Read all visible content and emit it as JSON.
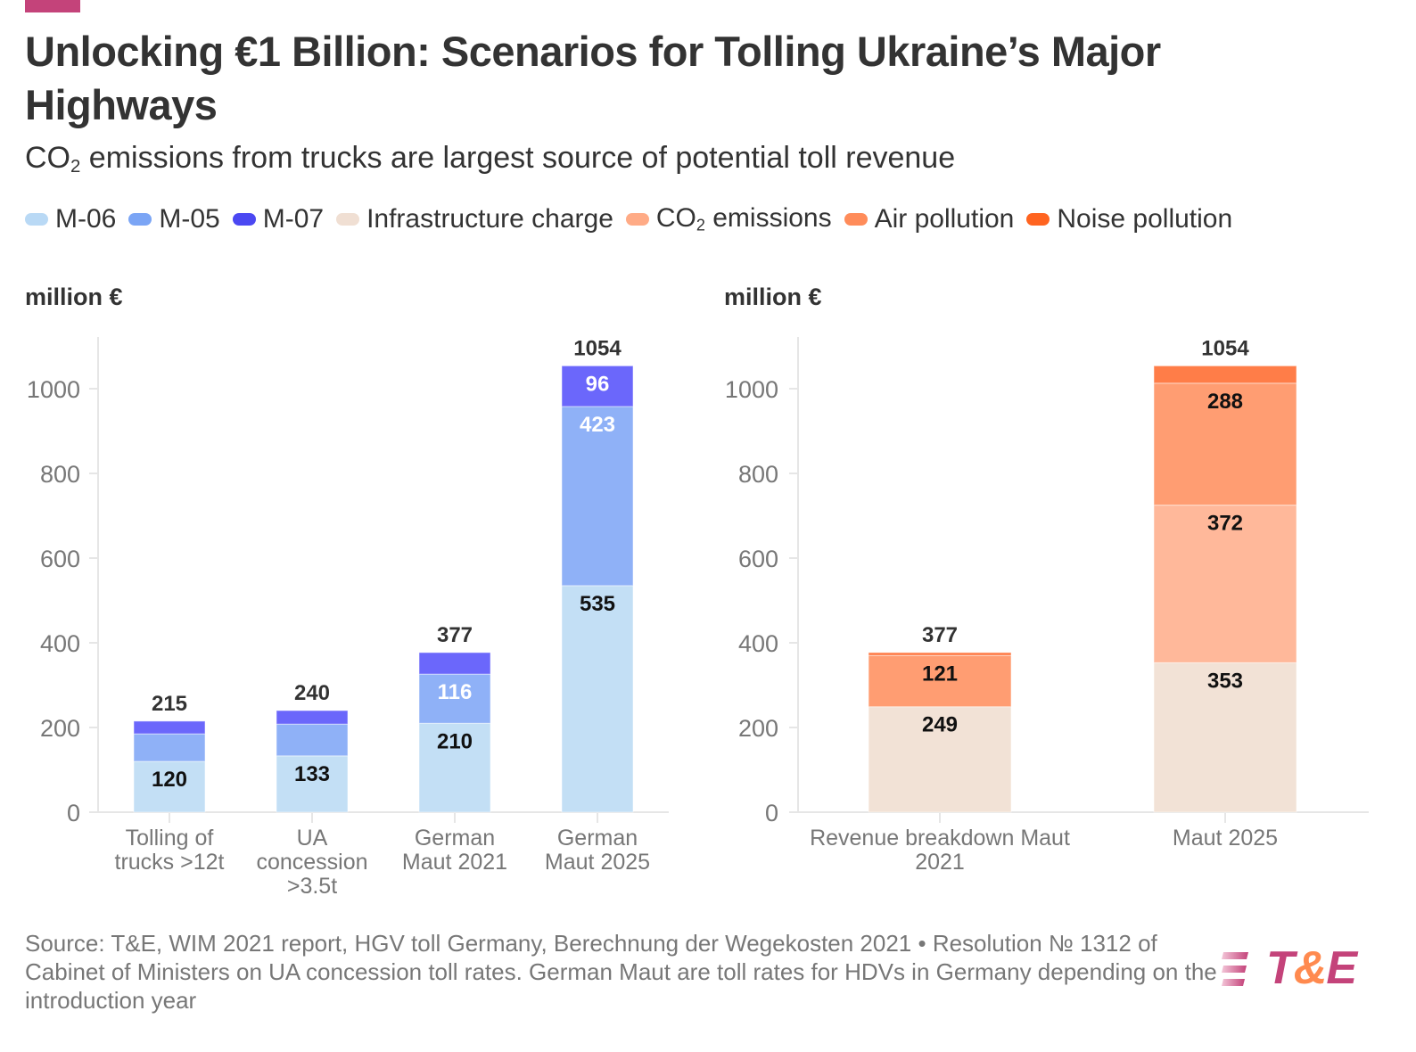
{
  "header": {
    "title": "Unlocking €1 Billion: Scenarios for Tolling Ukraine’s Major Highways",
    "subtitle_pre": "CO",
    "subtitle_sub": "2",
    "subtitle_post": " emissions from trucks are largest source of potential toll revenue"
  },
  "legend": [
    {
      "label": "M-06",
      "color": "#b9d9f5"
    },
    {
      "label": "M-05",
      "color": "#7ba5f5"
    },
    {
      "label": "M-07",
      "color": "#4b48f2"
    },
    {
      "label": "Infrastructure charge",
      "color": "#f0dfd3"
    },
    {
      "label": "CO",
      "sub": "2",
      "post": " emissions",
      "color": "#ffab86"
    },
    {
      "label": "Air pollution",
      "color": "#ff8c5a"
    },
    {
      "label": "Noise pollution",
      "color": "#ff6420"
    }
  ],
  "chart_data": [
    {
      "type": "bar",
      "stacked": true,
      "ylabel": "million €",
      "ylim": [
        0,
        1100
      ],
      "yticks": [
        0,
        200,
        400,
        600,
        800,
        1000
      ],
      "grid": false,
      "categories": [
        [
          "Tolling of",
          "trucks >12t"
        ],
        [
          "UA",
          "concession",
          ">3.5t"
        ],
        [
          "German",
          "Maut 2021"
        ],
        [
          "German",
          "Maut 2025"
        ]
      ],
      "series": [
        {
          "name": "M-06",
          "color": "#c3dff5",
          "values": [
            120,
            133,
            210,
            535
          ],
          "labels": [
            "120",
            "133",
            "210",
            "535"
          ],
          "label_color": "#111"
        },
        {
          "name": "M-05",
          "color": "#8fb1f7",
          "values": [
            65,
            75,
            116,
            423
          ],
          "labels": [
            "",
            "",
            "116",
            "423"
          ],
          "label_color": "#fff"
        },
        {
          "name": "M-07",
          "color": "#6b67fb",
          "values": [
            30,
            32,
            51,
            96
          ],
          "labels": [
            "",
            "",
            "",
            "96"
          ],
          "label_color": "#fff"
        }
      ],
      "totals": [
        215,
        240,
        377,
        1054
      ]
    },
    {
      "type": "bar",
      "stacked": true,
      "ylabel": "million €",
      "ylim": [
        0,
        1100
      ],
      "yticks": [
        0,
        200,
        400,
        600,
        800,
        1000
      ],
      "grid": false,
      "categories": [
        [
          "Revenue breakdown Maut",
          "2021"
        ],
        [
          "Maut 2025"
        ]
      ],
      "series": [
        {
          "name": "Infrastructure charge",
          "color": "#f2e2d6",
          "values": [
            249,
            353
          ],
          "labels": [
            "249",
            "353"
          ],
          "label_color": "#111"
        },
        {
          "name": "CO2 emissions",
          "color": "#ffb89a",
          "values": [
            0,
            372
          ],
          "labels": [
            "",
            "372"
          ],
          "label_color": "#111"
        },
        {
          "name": "Air pollution",
          "color": "#ff9d72",
          "values": [
            121,
            288
          ],
          "labels": [
            "121",
            "288"
          ],
          "label_color": "#111"
        },
        {
          "name": "Noise pollution",
          "color": "#ff7d48",
          "values": [
            7,
            41
          ],
          "labels": [
            "",
            ""
          ],
          "label_color": "#111"
        }
      ],
      "totals": [
        377,
        1054
      ]
    }
  ],
  "footer": {
    "source": "Source: T&E, WIM 2021 report, HGV toll Germany, Berechnung der Wegekosten 2021 • Resolution № 1312 of Cabinet of Ministers on UA concession toll rates. German Maut are toll rates for HDVs in Germany depending on the introduction year",
    "logo_text_t": "T",
    "logo_text_amp": "&",
    "logo_text_e": "E"
  }
}
